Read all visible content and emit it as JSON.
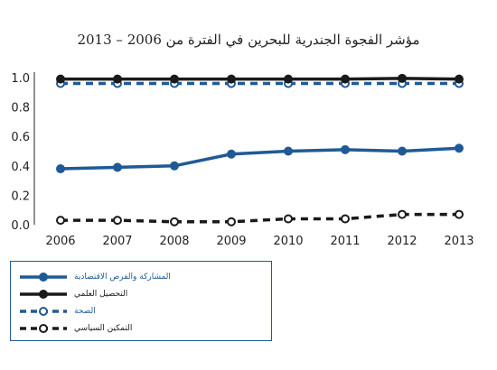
{
  "chart_data": {
    "type": "line",
    "title": "مؤشر الفجوة الجندرية للبحرين في الفترة من 2006 – 2013",
    "x": [
      "2006",
      "2007",
      "2008",
      "2009",
      "2010",
      "2011",
      "2012",
      "2013"
    ],
    "ylim": [
      0,
      1.0
    ],
    "yticks": [
      "0.0",
      "0.2",
      "0.4",
      "0.6",
      "0.8",
      "1.0"
    ],
    "grid": false,
    "legend_position": "bottom-left",
    "series": [
      {
        "name": "المشاركة والفرص الاقتصادية",
        "values": [
          0.38,
          0.39,
          0.4,
          0.48,
          0.5,
          0.51,
          0.5,
          0.52
        ],
        "color": "#1f5a96",
        "dashed": false,
        "filled": true
      },
      {
        "name": "التحصيل العلمي",
        "values": [
          0.99,
          0.99,
          0.99,
          0.99,
          0.99,
          0.99,
          0.995,
          0.99
        ],
        "color": "#1a1a1a",
        "dashed": false,
        "filled": true
      },
      {
        "name": "الصحة",
        "values": [
          0.96,
          0.96,
          0.96,
          0.96,
          0.96,
          0.96,
          0.96,
          0.96
        ],
        "color": "#1f5a96",
        "dashed": true,
        "filled": false
      },
      {
        "name": "التمكين السياسي",
        "values": [
          0.03,
          0.03,
          0.02,
          0.02,
          0.04,
          0.04,
          0.07,
          0.07
        ],
        "color": "#1a1a1a",
        "dashed": true,
        "filled": false
      }
    ]
  }
}
